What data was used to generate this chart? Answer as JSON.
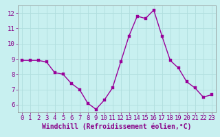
{
  "hours": [
    0,
    1,
    2,
    3,
    4,
    5,
    6,
    7,
    8,
    9,
    10,
    11,
    12,
    13,
    14,
    15,
    16,
    17,
    18,
    19,
    20,
    21,
    22,
    23
  ],
  "values": [
    8.9,
    8.9,
    8.9,
    8.8,
    8.1,
    8.0,
    7.4,
    7.0,
    6.1,
    5.7,
    6.3,
    7.1,
    8.8,
    10.5,
    11.8,
    11.65,
    12.2,
    10.5,
    8.9,
    8.4,
    7.5,
    7.1,
    6.5,
    6.65
  ],
  "line_color": "#990099",
  "marker_color": "#990099",
  "bg_color": "#c8f0f0",
  "grid_color": "#b0dede",
  "xlabel": "Windchill (Refroidissement éolien,°C)",
  "xlim": [
    -0.5,
    23.5
  ],
  "ylim": [
    5.5,
    12.5
  ],
  "yticks": [
    6,
    7,
    8,
    9,
    10,
    11,
    12
  ],
  "xticks": [
    0,
    1,
    2,
    3,
    4,
    5,
    6,
    7,
    8,
    9,
    10,
    11,
    12,
    13,
    14,
    15,
    16,
    17,
    18,
    19,
    20,
    21,
    22,
    23
  ],
  "xlabel_fontsize": 7.0,
  "tick_fontsize": 6.5,
  "line_width": 1.0,
  "marker_size": 2.5
}
